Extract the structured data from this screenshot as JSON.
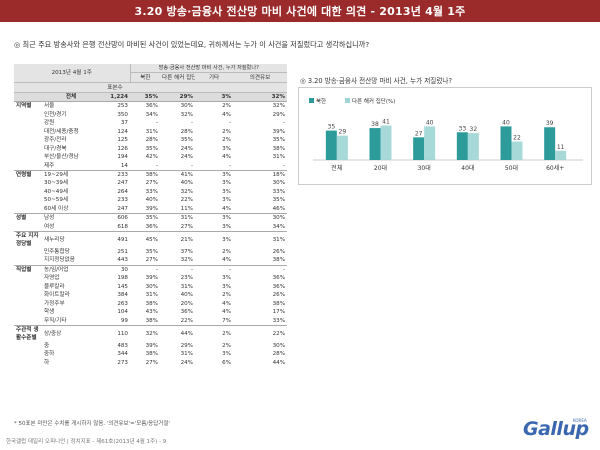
{
  "title": "3.20 방송·금융사 전산망 마비 사건에 대한 의견 - 2013년 4월 1주",
  "question": "◎ 최근 주요 방송사와 은행 전산망이 마비된 사건이 있었는데요, 귀하께서는 누가 이 사건을 저질렀다고 생각하십니까?",
  "table": {
    "period": "2013년 4월 1주",
    "group_header": "방송·금융사 전산망 마비 사건, 누가 저질렀나?",
    "columns": [
      "표본수",
      "북한",
      "다른 해커 집단",
      "기타",
      "의견유보"
    ],
    "rows": [
      {
        "group": "",
        "label": "전체",
        "values": [
          "1,224",
          "35%",
          "29%",
          "3%",
          "32%"
        ],
        "total": true
      },
      {
        "group": "지역별",
        "label": "서울",
        "values": [
          "253",
          "36%",
          "30%",
          "2%",
          "32%"
        ]
      },
      {
        "group": "",
        "label": "인천/경기",
        "values": [
          "350",
          "34%",
          "32%",
          "4%",
          "29%"
        ]
      },
      {
        "group": "",
        "label": "강원",
        "values": [
          "37",
          "-",
          "-",
          "-",
          "-"
        ]
      },
      {
        "group": "",
        "label": "대전/세종/충청",
        "values": [
          "124",
          "31%",
          "28%",
          "2%",
          "39%"
        ]
      },
      {
        "group": "",
        "label": "광주/전라",
        "values": [
          "125",
          "28%",
          "35%",
          "2%",
          "35%"
        ]
      },
      {
        "group": "",
        "label": "대구/경북",
        "values": [
          "126",
          "35%",
          "24%",
          "3%",
          "38%"
        ]
      },
      {
        "group": "",
        "label": "부산/울산/경남",
        "values": [
          "194",
          "42%",
          "24%",
          "4%",
          "31%"
        ]
      },
      {
        "group": "",
        "label": "제주",
        "values": [
          "14",
          "-",
          "-",
          "-",
          "-"
        ]
      },
      {
        "group": "연령별",
        "label": "19~29세",
        "values": [
          "233",
          "38%",
          "41%",
          "3%",
          "18%"
        ]
      },
      {
        "group": "",
        "label": "30~39세",
        "values": [
          "247",
          "27%",
          "40%",
          "3%",
          "30%"
        ]
      },
      {
        "group": "",
        "label": "40~49세",
        "values": [
          "264",
          "33%",
          "32%",
          "3%",
          "33%"
        ]
      },
      {
        "group": "",
        "label": "50~59세",
        "values": [
          "233",
          "40%",
          "22%",
          "3%",
          "35%"
        ]
      },
      {
        "group": "",
        "label": "60세 이상",
        "values": [
          "247",
          "39%",
          "11%",
          "4%",
          "46%"
        ]
      },
      {
        "group": "성별",
        "label": "남성",
        "values": [
          "606",
          "35%",
          "31%",
          "3%",
          "30%"
        ]
      },
      {
        "group": "",
        "label": "여성",
        "values": [
          "618",
          "36%",
          "27%",
          "3%",
          "34%"
        ]
      },
      {
        "group": "주요 지지 정당별",
        "label": "새누리당",
        "values": [
          "491",
          "45%",
          "21%",
          "3%",
          "31%"
        ]
      },
      {
        "group": "",
        "label": "민주통합당",
        "values": [
          "251",
          "35%",
          "37%",
          "2%",
          "26%"
        ]
      },
      {
        "group": "",
        "label": "지지정당없음",
        "values": [
          "443",
          "27%",
          "32%",
          "4%",
          "38%"
        ]
      },
      {
        "group": "직업별",
        "label": "농/임/어업",
        "values": [
          "30",
          "-",
          "-",
          "-",
          "-"
        ]
      },
      {
        "group": "",
        "label": "자영업",
        "values": [
          "198",
          "39%",
          "23%",
          "3%",
          "36%"
        ]
      },
      {
        "group": "",
        "label": "블루칼라",
        "values": [
          "145",
          "30%",
          "31%",
          "3%",
          "36%"
        ]
      },
      {
        "group": "",
        "label": "화이트칼라",
        "values": [
          "384",
          "31%",
          "40%",
          "2%",
          "26%"
        ]
      },
      {
        "group": "",
        "label": "가정주부",
        "values": [
          "263",
          "38%",
          "20%",
          "4%",
          "38%"
        ]
      },
      {
        "group": "",
        "label": "학생",
        "values": [
          "104",
          "43%",
          "36%",
          "4%",
          "17%"
        ]
      },
      {
        "group": "",
        "label": "무직/기타",
        "values": [
          "99",
          "38%",
          "22%",
          "7%",
          "33%"
        ]
      },
      {
        "group": "주관적 생활수준별",
        "label": "상/중상",
        "values": [
          "110",
          "32%",
          "44%",
          "2%",
          "22%"
        ]
      },
      {
        "group": "",
        "label": "중",
        "values": [
          "483",
          "39%",
          "29%",
          "2%",
          "30%"
        ]
      },
      {
        "group": "",
        "label": "중하",
        "values": [
          "344",
          "38%",
          "31%",
          "3%",
          "28%"
        ]
      },
      {
        "group": "",
        "label": "하",
        "values": [
          "273",
          "27%",
          "24%",
          "6%",
          "44%"
        ]
      }
    ]
  },
  "footnote": "* 50표본 미만은 수치를 게시하지 않음. '의견유보'='모름/응답거절'",
  "footer": "한국갤럽 데일리 오피니언 | 정치지표 - 제61호(2013년 4월 1주) - 9",
  "logo": {
    "text": "Gallup",
    "small": "KOREA"
  },
  "chart": {
    "title": "◎ 3.20 방송·금융사 전산망 마비 사건, 누가 저질렀나?"
  },
  "chart_data": {
    "type": "bar",
    "title": "3.20 방송·금융사 전산망 마비 사건, 누가 저질렀나?",
    "categories": [
      "전체",
      "20대",
      "30대",
      "40대",
      "50대",
      "60세+"
    ],
    "series": [
      {
        "name": "북한",
        "values": [
          35,
          38,
          27,
          33,
          40,
          39
        ]
      },
      {
        "name": "다른 해커 집단(%)",
        "values": [
          29,
          41,
          40,
          32,
          22,
          11
        ]
      }
    ],
    "ylim": [
      0,
      50
    ],
    "colors": [
      "#2e9b9b",
      "#9fd5d5"
    ],
    "legend": "top-left"
  }
}
